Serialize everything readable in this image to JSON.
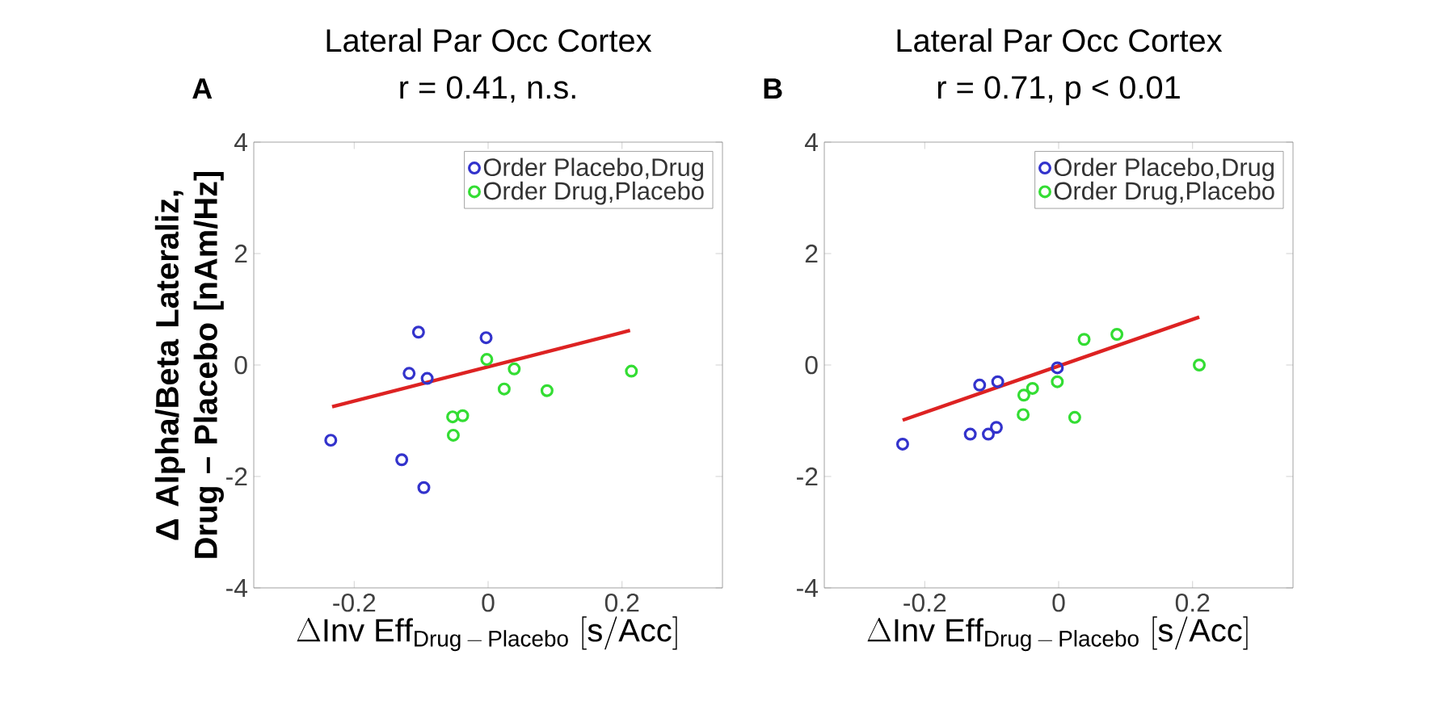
{
  "chart_data": [
    {
      "type": "scatter",
      "title": "Lateral Par Occ Cortex",
      "subtitle": "r = 0.41, n.s.",
      "xlabel": "\\Delta\\mathrm{Inv\\ Eff}_{\\mathrm{Drug\\,-\\,Placebo}}\\ [\\mathrm{s/Acc}]",
      "ylabel": "Δ Alpha/Beta Lateraliz, Drug – Placebo [nAm/Hz]",
      "annotations": [
        "A"
      ],
      "legend": "top right",
      "marker": "circle",
      "grid": false,
      "xlim": [
        -0.35,
        0.35
      ],
      "ylim": [
        -4,
        4
      ],
      "xticks": [
        -0.2,
        0,
        0.2
      ],
      "yticks": [
        -4,
        -2,
        0,
        2,
        4
      ],
      "series": [
        {
          "name": "Order Placebo,Drug",
          "color": "#3333cc",
          "x": [
            -0.235,
            -0.104,
            -0.118,
            -0.091,
            -0.003,
            -0.129,
            -0.096
          ],
          "values": [
            -1.35,
            0.59,
            -0.15,
            -0.24,
            0.49,
            -1.7,
            -2.2
          ]
        },
        {
          "name": "Order Drug,Placebo",
          "color": "#33dd33",
          "x": [
            -0.002,
            0.039,
            0.024,
            0.088,
            0.214,
            -0.053,
            -0.038,
            -0.052
          ],
          "values": [
            0.1,
            -0.07,
            -0.43,
            -0.46,
            -0.11,
            -0.93,
            -0.91,
            -1.26
          ]
        },
        {
          "type": "line",
          "marker": "none",
          "color": "#dd2222",
          "x": [
            -0.233,
            0.212
          ],
          "values": [
            -0.75,
            0.62
          ]
        }
      ]
    },
    {
      "type": "scatter",
      "title": "Lateral Par Occ Cortex",
      "subtitle": "r = 0.71, p < 0.01",
      "xlabel": "\\Delta\\mathrm{Inv\\ Eff}_{\\mathrm{Drug\\,-\\,Placebo}}\\ [\\mathrm{s/Acc}]",
      "annotations": [
        "B"
      ],
      "legend": "top right",
      "marker": "circle",
      "grid": false,
      "xlim": [
        -0.35,
        0.35
      ],
      "ylim": [
        -4,
        4
      ],
      "xticks": [
        -0.2,
        0,
        0.2
      ],
      "yticks": [
        -4,
        -2,
        0,
        2,
        4
      ],
      "series": [
        {
          "name": "Order Placebo,Drug",
          "color": "#3333cc",
          "x": [
            -0.233,
            -0.118,
            -0.091,
            -0.132,
            -0.105,
            -0.093,
            -0.002
          ],
          "values": [
            -1.42,
            -0.36,
            -0.3,
            -1.24,
            -1.24,
            -1.12,
            -0.05
          ]
        },
        {
          "name": "Order Drug,Placebo",
          "color": "#33dd33",
          "x": [
            0.038,
            0.087,
            0.21,
            -0.002,
            -0.052,
            -0.039,
            -0.053,
            0.024
          ],
          "values": [
            0.46,
            0.55,
            0.0,
            -0.3,
            -0.54,
            -0.42,
            -0.89,
            -0.94
          ]
        },
        {
          "type": "line",
          "marker": "none",
          "color": "#dd2222",
          "x": [
            -0.233,
            0.21
          ],
          "values": [
            -0.99,
            0.86
          ]
        }
      ]
    }
  ]
}
